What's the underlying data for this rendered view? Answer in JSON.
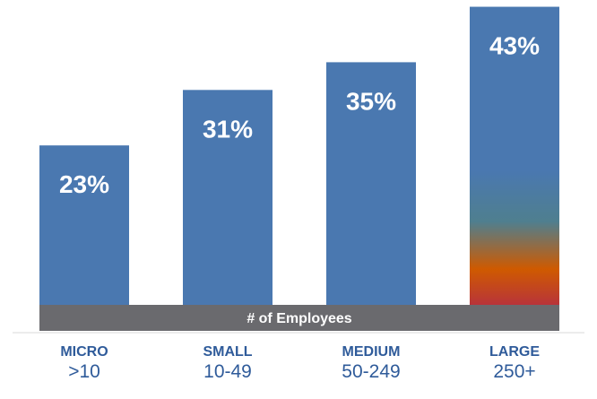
{
  "chart_data": {
    "type": "bar",
    "categories": [
      "MICRO",
      "SMALL",
      "MEDIUM",
      "LARGE"
    ],
    "category_sublabels": [
      ">10",
      "10-49",
      "50-249",
      "250+"
    ],
    "values": [
      23,
      31,
      35,
      43
    ],
    "value_labels": [
      "23%",
      "31%",
      "35%",
      "43%"
    ],
    "xlabel": "# of Employees",
    "ylabel": "",
    "title": "",
    "ylim": [
      0,
      45
    ],
    "grid": false,
    "legend": "none"
  },
  "colors": {
    "bar": "#4a78b0",
    "axis_band": "#6a6a6e",
    "category_text": "#2f5b9a",
    "value_text": "#ffffff",
    "highlight_gradient": [
      "#4a78b0",
      "#4f7f8f",
      "#cf5a00",
      "#b8343a"
    ],
    "baseline": "#d9d9d9"
  }
}
